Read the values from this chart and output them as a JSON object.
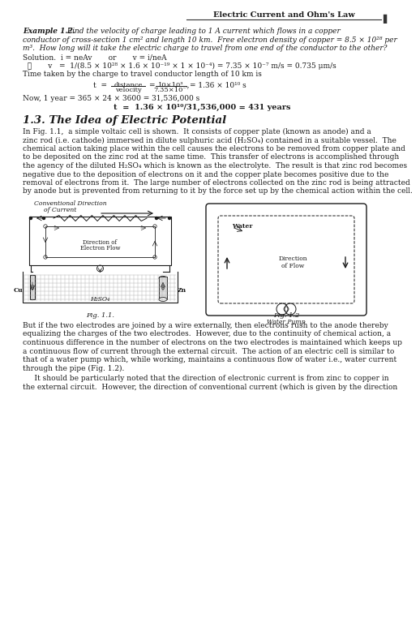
{
  "page_title": "Electric Current and Ohm's Law",
  "background_color": "#ffffff",
  "text_color": "#1a1a1a",
  "content": {
    "example_header": "Example 1.2.",
    "example_text1": " Find the velocity of charge leading to 1 A current which flows in a copper",
    "example_text2": "conductor of cross-section 1 cm² and length 10 km.  Free electron density of copper = 8.5 × 10²⁸ per",
    "example_text3": "m³.  How long will it take the electric charge to travel from one end of the conductor to the other?",
    "sol1": "Solution.  i = neAv       or       v = i/neA",
    "sol2": "  ∴       v   =  1/(8.5 × 10²⁸ × 1.6 × 10⁻¹⁹ × 1 × 10⁻⁴) = 7.35 × 10⁻⁷ m/s = 0.735 μm/s",
    "sol3": "Time taken by the charge to travel conductor length of 10 km is",
    "frac_lhs": "t  =",
    "frac_top1": "distance",
    "frac_bot1": "velocity",
    "frac_eq": "=",
    "frac_top2": "10×10³",
    "frac_bot2": "7.35×10⁻⁷",
    "frac_res": "= 1.36 × 10¹⁰ s",
    "sol4": "Now, 1 year = 365 × 24 × 3600 = 31,536,000 s",
    "sol5": "t  =  1.36 × 10¹⁰/31,536,000 = 431 years",
    "sec_head": "1.3. The Idea of Electric Potential",
    "p1l1": "In Fig. 1.1,  a simple voltaic cell is shown.  It consists of copper plate (known as anode) and a",
    "p1l2": "zinc rod (i.e. cathode) immersed in dilute sulphuric acid (H₂SO₄) contained in a suitable vessel.  The",
    "p1l3": "chemical action taking place within the cell causes the electrons to be removed from copper plate and",
    "p1l4": "to be deposited on the zinc rod at the same time.  This transfer of electrons is accomplished through",
    "p1l5": "the agency of the diluted H₂SO₄ which is known as the electrolyte.  The result is that zinc rod becomes",
    "p1l6": "negative due to the deposition of electrons on it and the copper plate becomes positive due to the",
    "p1l7": "removal of electrons from it.  The large number of electrons collected on the zinc rod is being attracted",
    "p1l8": "by anode but is prevented from returning to it by the force set up by the chemical action within the cell.",
    "fig11_label": "Fig. 1.1.",
    "fig12_label": "Fig. 1.2",
    "p2l1": "But if the two electrodes are joined by a wire externally, then electrons rush to the anode thereby",
    "p2l2": "equalizing the charges of the two electrodes.  However, due to the continuity of chemical action, a",
    "p2l3": "continuous difference in the number of electrons on the two electrodes is maintained which keeps up",
    "p2l4": "a continuous flow of current through the external circuit.  The action of an electric cell is similar to",
    "p2l5": "that of a water pump which, while working, maintains a continuous flow of water i.e., water current",
    "p2l6": "through the pipe (Fig. 1.2).",
    "p3l1": "     It should be particularly noted that the direction of electronic current is from zinc to copper in",
    "p3l2": "the external circuit.  However, the direction of conventional current (which is given by the direction"
  }
}
